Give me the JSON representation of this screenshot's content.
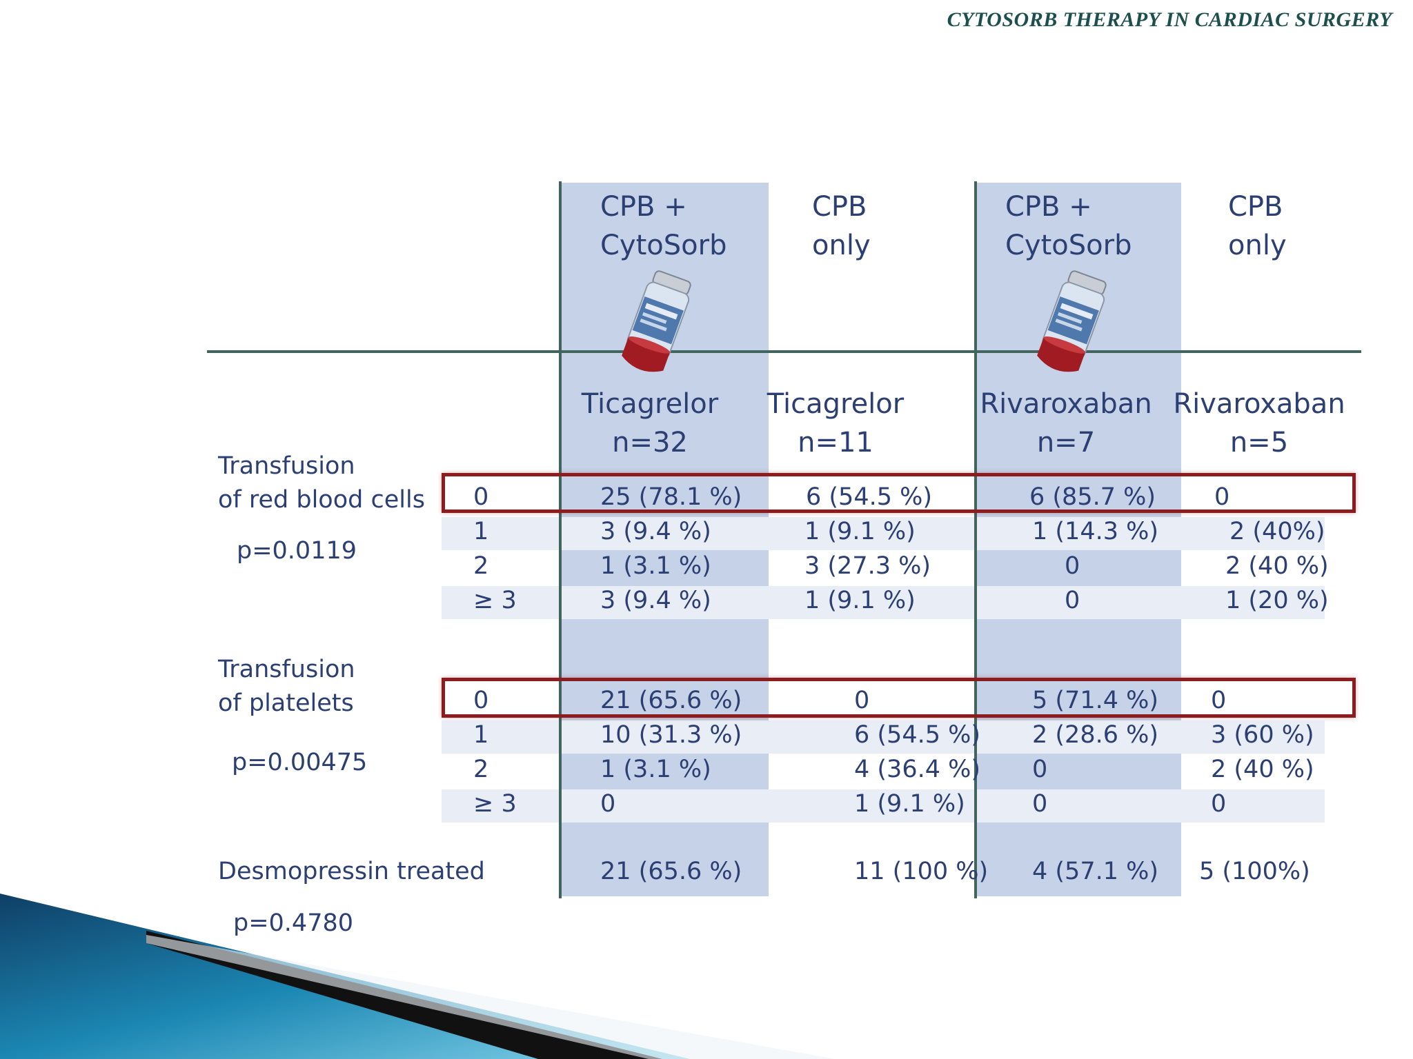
{
  "slide": {
    "title": "CYTOSORB THERAPY IN CARDIAC SURGERY"
  },
  "columns": [
    {
      "therapy": [
        "CPB +",
        "CytoSorb"
      ],
      "drug": "Ticagrelor",
      "n": "n=32"
    },
    {
      "therapy": [
        "CPB",
        "only"
      ],
      "drug": "Ticagrelor",
      "n": "n=11"
    },
    {
      "therapy": [
        "CPB +",
        "CytoSorb"
      ],
      "drug": "Rivaroxaban",
      "n": "n=7"
    },
    {
      "therapy": [
        "CPB",
        "only"
      ],
      "drug": "Rivaroxaban",
      "n": "n=5"
    }
  ],
  "rbc": {
    "label": [
      "Transfusion",
      "of red blood cells"
    ],
    "p_value": "p=0.0119",
    "rows": [
      {
        "level": "0",
        "cells": [
          "25 (78.1 %)",
          "6 (54.5 %)",
          "6 (85.7 %)",
          "0"
        ]
      },
      {
        "level": "1",
        "cells": [
          "3 (9.4 %)",
          "1 (9.1 %)",
          "1 (14.3 %)",
          "2 (40%)"
        ]
      },
      {
        "level": "2",
        "cells": [
          "1 (3.1 %)",
          "3 (27.3 %)",
          "0",
          "2 (40 %)"
        ]
      },
      {
        "level": "≥ 3",
        "cells": [
          "3 (9.4 %)",
          "1 (9.1 %)",
          "0",
          "1 (20 %)"
        ]
      }
    ]
  },
  "platelets": {
    "label": [
      "Transfusion",
      "of platelets"
    ],
    "p_value": "p=0.00475",
    "rows": [
      {
        "level": "0",
        "cells": [
          "21 (65.6 %)",
          "0",
          "5 (71.4 %)",
          "0"
        ]
      },
      {
        "level": "1",
        "cells": [
          "10 (31.3 %)",
          "6 (54.5 %)",
          "2 (28.6 %)",
          "3 (60 %)"
        ]
      },
      {
        "level": "2",
        "cells": [
          "1 (3.1 %)",
          "4 (36.4 %)",
          "0",
          "2 (40 %)"
        ]
      },
      {
        "level": "≥ 3",
        "cells": [
          "0",
          "1 (9.1 %)",
          "0",
          "0"
        ]
      }
    ]
  },
  "desmopressin": {
    "label": "Desmopressin treated",
    "p_value": "p=0.4780",
    "cells": [
      "21 (65.6 %)",
      "11 (100 %)",
      "4 (57.1 %)",
      "5 (100%)"
    ]
  },
  "colors": {
    "title": "#1d4f4f",
    "band": "#c5d2e8",
    "grid_line": "#41645c",
    "highlight_box": "#8d1c1f",
    "text": "#2c3f73"
  }
}
